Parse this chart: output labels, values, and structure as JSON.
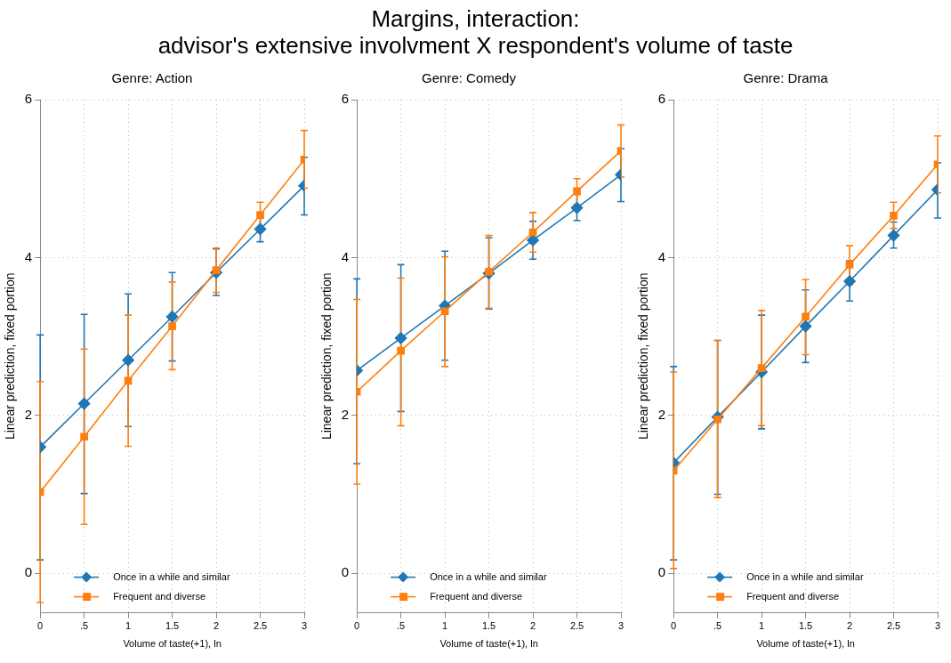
{
  "chart_data": [
    {
      "type": "line",
      "title": "Margins, interaction:\nadvisor's extensive involvment X respondent's volume of taste",
      "subtitle": "Genre: Action",
      "xlabel": "Volume of taste(+1), ln",
      "ylabel": "Linear prediction, fixed portion",
      "x": [
        0,
        0.5,
        1,
        1.5,
        2,
        2.5,
        3
      ],
      "xlim": [
        0,
        3
      ],
      "xticks": [
        0,
        {
          "value": 0.5,
          "label": ".5"
        },
        1,
        {
          "value": 1.5,
          "label": "1.5"
        },
        2,
        {
          "value": 2.5,
          "label": "2.5"
        },
        3
      ],
      "ylim": [
        -0.5,
        6
      ],
      "yticks": [
        0,
        2,
        4,
        6
      ],
      "grid": true,
      "line_style": "solid",
      "legend": "bottom",
      "series": [
        {
          "name": "Once in a while and similar",
          "color": "#1f77b4",
          "marker": "diamond",
          "values": [
            1.6,
            2.15,
            2.7,
            3.25,
            3.81,
            4.36,
            4.91
          ],
          "errors": [
            [
              0.17,
              3.02
            ],
            [
              1.01,
              3.28
            ],
            [
              1.86,
              3.54
            ],
            [
              2.69,
              3.81
            ],
            [
              3.52,
              4.11
            ],
            [
              4.2,
              4.5
            ],
            [
              4.54,
              5.27
            ]
          ]
        },
        {
          "name": "Frequent and diverse",
          "color": "#ff7f0e",
          "marker": "square",
          "values": [
            1.03,
            1.73,
            2.44,
            3.13,
            3.84,
            4.54,
            5.24
          ],
          "errors": [
            [
              -0.37,
              2.43
            ],
            [
              0.62,
              2.84
            ],
            [
              1.61,
              3.27
            ],
            [
              2.58,
              3.69
            ],
            [
              3.56,
              4.12
            ],
            [
              4.38,
              4.7
            ],
            [
              4.88,
              5.61
            ]
          ]
        }
      ]
    },
    {
      "type": "line",
      "subtitle": "Genre: Comedy",
      "xlabel": "Volume of taste(+1), ln",
      "ylabel": "Linear prediction, fixed portion",
      "x": [
        0,
        0.5,
        1,
        1.5,
        2,
        2.5,
        3
      ],
      "xlim": [
        0,
        3
      ],
      "xticks": [
        0,
        {
          "value": 0.5,
          "label": ".5"
        },
        1,
        {
          "value": 1.5,
          "label": "1.5"
        },
        2,
        {
          "value": 2.5,
          "label": "2.5"
        },
        3
      ],
      "ylim": [
        -0.5,
        6
      ],
      "yticks": [
        0,
        2,
        4,
        6
      ],
      "grid": true,
      "line_style": "solid",
      "legend": "bottom",
      "series": [
        {
          "name": "Once in a while and similar",
          "color": "#1f77b4",
          "marker": "diamond",
          "values": [
            2.57,
            2.98,
            3.39,
            3.8,
            4.22,
            4.63,
            5.05
          ],
          "errors": [
            [
              1.39,
              3.73
            ],
            [
              2.05,
              3.91
            ],
            [
              2.7,
              4.08
            ],
            [
              3.35,
              4.25
            ],
            [
              3.98,
              4.46
            ],
            [
              4.47,
              4.8
            ],
            [
              4.71,
              5.38
            ]
          ]
        },
        {
          "name": "Frequent and diverse",
          "color": "#ff7f0e",
          "marker": "square",
          "values": [
            2.3,
            2.82,
            3.32,
            3.82,
            4.32,
            4.84,
            5.35
          ],
          "errors": [
            [
              1.13,
              3.47
            ],
            [
              1.87,
              3.74
            ],
            [
              2.62,
              4.01
            ],
            [
              3.36,
              4.28
            ],
            [
              4.07,
              4.57
            ],
            [
              4.67,
              5.0
            ],
            [
              5.02,
              5.68
            ]
          ]
        }
      ]
    },
    {
      "type": "line",
      "subtitle": "Genre: Drama",
      "xlabel": "Volume of taste(+1), ln",
      "ylabel": "Linear prediction, fixed portion",
      "x": [
        0,
        0.5,
        1,
        1.5,
        2,
        2.5,
        3
      ],
      "xlim": [
        0,
        3
      ],
      "xticks": [
        0,
        {
          "value": 0.5,
          "label": ".5"
        },
        1,
        {
          "value": 1.5,
          "label": "1.5"
        },
        2,
        {
          "value": 2.5,
          "label": "2.5"
        },
        3
      ],
      "ylim": [
        -0.5,
        6
      ],
      "yticks": [
        0,
        2,
        4,
        6
      ],
      "grid": true,
      "line_style": "solid",
      "legend": "bottom",
      "series": [
        {
          "name": "Once in a while and similar",
          "color": "#1f77b4",
          "marker": "diamond",
          "values": [
            1.4,
            1.98,
            2.55,
            3.13,
            3.7,
            4.28,
            4.86
          ],
          "errors": [
            [
              0.17,
              2.62
            ],
            [
              1.0,
              2.95
            ],
            [
              1.83,
              3.27
            ],
            [
              2.67,
              3.59
            ],
            [
              3.45,
              3.96
            ],
            [
              4.12,
              4.45
            ],
            [
              4.5,
              5.2
            ]
          ]
        },
        {
          "name": "Frequent and diverse",
          "color": "#ff7f0e",
          "marker": "square",
          "values": [
            1.3,
            1.95,
            2.6,
            3.25,
            3.91,
            4.53,
            5.18
          ],
          "errors": [
            [
              0.06,
              2.55
            ],
            [
              0.96,
              2.95
            ],
            [
              1.87,
              3.33
            ],
            [
              2.77,
              3.72
            ],
            [
              3.66,
              4.15
            ],
            [
              4.37,
              4.7
            ],
            [
              4.82,
              5.54
            ]
          ]
        }
      ]
    }
  ]
}
